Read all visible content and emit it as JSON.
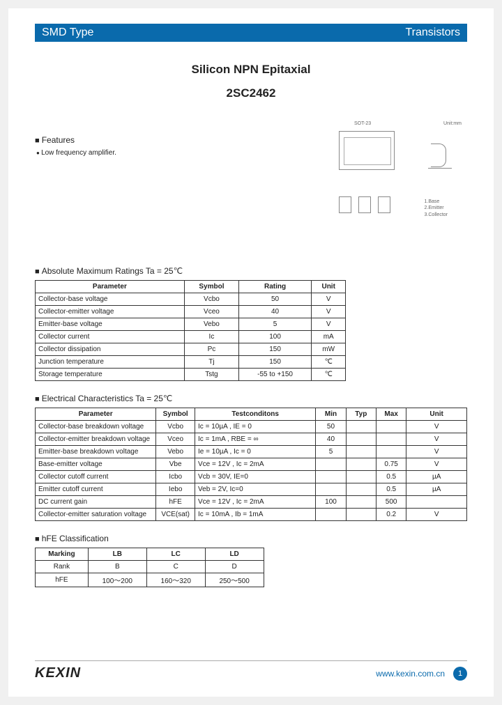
{
  "header": {
    "left": "SMD Type",
    "right": "Transistors"
  },
  "title": "Silicon NPN Epitaxial",
  "subtitle": "2SC2462",
  "features": {
    "heading": "Features",
    "items": [
      "Low frequency amplifier."
    ]
  },
  "package": {
    "label": "SOT-23",
    "unit_label": "Unit:mm",
    "pins": [
      "1.Base",
      "2.Emitter",
      "3.Collector"
    ]
  },
  "maximum": {
    "heading": "Absolute Maximum Ratings Ta = 25℃",
    "columns": [
      "Parameter",
      "Symbol",
      "Rating",
      "Unit"
    ],
    "rows": [
      [
        "Collector-base voltage",
        "Vcbo",
        "50",
        "V"
      ],
      [
        "Collector-emitter voltage",
        "Vceo",
        "40",
        "V"
      ],
      [
        "Emitter-base voltage",
        "Vebo",
        "5",
        "V"
      ],
      [
        "Collector current",
        "Ic",
        "100",
        "mA"
      ],
      [
        "Collector dissipation",
        "Pc",
        "150",
        "mW"
      ],
      [
        "Junction temperature",
        "Tj",
        "150",
        "℃"
      ],
      [
        "Storage temperature",
        "Tstg",
        "-55 to +150",
        "℃"
      ]
    ]
  },
  "electrical": {
    "heading": "Electrical Characteristics Ta = 25℃",
    "columns": [
      "Parameter",
      "Symbol",
      "Testconditons",
      "Min",
      "Typ",
      "Max",
      "Unit"
    ],
    "rows": [
      [
        "Collector-base breakdown voltage",
        "Vcbo",
        "Ic = 10µA , IE = 0",
        "50",
        "",
        "",
        "V"
      ],
      [
        "Collector-emitter breakdown voltage",
        "Vceo",
        "Ic = 1mA , RBE = ∞",
        "40",
        "",
        "",
        "V"
      ],
      [
        "Emitter-base breakdown voltage",
        "Vebo",
        "Ie = 10µA , Ic = 0",
        "5",
        "",
        "",
        "V"
      ],
      [
        "Base-emitter voltage",
        "Vbe",
        "Vce = 12V , Ic = 2mA",
        "",
        "",
        "0.75",
        "V"
      ],
      [
        "Collector cutoff current",
        "Icbo",
        "Vcb = 30V, IE=0",
        "",
        "",
        "0.5",
        "µA"
      ],
      [
        "Emitter cutoff current",
        "Iebo",
        "Veb = 2V, Ic=0",
        "",
        "",
        "0.5",
        "µA"
      ],
      [
        "DC current gain",
        "hFE",
        "Vce = 12V , Ic = 2mA",
        "100",
        "",
        "500",
        ""
      ],
      [
        "Collector-emitter saturation voltage",
        "VCE(sat)",
        "Ic = 10mA , Ib = 1mA",
        "",
        "",
        "0.2",
        "V"
      ]
    ]
  },
  "hfe": {
    "heading": "hFE Classification",
    "columns": [
      "Marking",
      "LB",
      "LC",
      "LD"
    ],
    "rows": [
      [
        "Rank",
        "B",
        "C",
        "D"
      ],
      [
        "hFE",
        "100～200",
        "160～320",
        "250～500"
      ]
    ]
  },
  "footer": {
    "logo": "KEXIN",
    "url": "www.kexin.com.cn",
    "page": "1"
  }
}
